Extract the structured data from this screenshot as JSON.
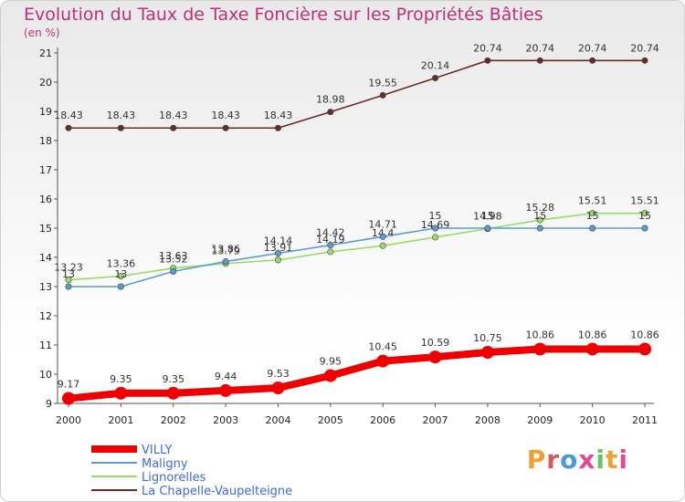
{
  "title": "Evolution du Taux de Taxe Foncière sur les Propriétés Bâties",
  "unit_label": "(en %)",
  "logo": "Proxiti",
  "chart_data": {
    "type": "line",
    "title": "Evolution du Taux de Taxe Foncière sur les Propriétés Bâties",
    "ylabel": "(en %)",
    "xlabel": "",
    "x": [
      2000,
      2001,
      2002,
      2003,
      2004,
      2005,
      2006,
      2007,
      2008,
      2009,
      2010,
      2011
    ],
    "ylim": [
      9,
      21
    ],
    "yticks": [
      9,
      10,
      11,
      12,
      13,
      14,
      15,
      16,
      17,
      18,
      19,
      20,
      21
    ],
    "grid": false,
    "legend": "bottom-left",
    "series": [
      {
        "name": "VILLY",
        "color": "#ee0000",
        "values": [
          9.17,
          9.35,
          9.35,
          9.44,
          9.53,
          9.95,
          10.45,
          10.59,
          10.75,
          10.86,
          10.86,
          10.86
        ],
        "labels": [
          "9.17",
          "9.35",
          "9.35",
          "9.44",
          "9.53",
          "9.95",
          "10.45",
          "10.59",
          "10.75",
          "10.86",
          "10.86",
          "10.86"
        ]
      },
      {
        "name": "Maligny",
        "color": "#5b9bd5",
        "values": [
          13,
          13,
          13.52,
          13.86,
          14.14,
          14.42,
          14.71,
          15,
          15,
          15,
          15,
          15
        ],
        "labels": [
          "13",
          "13",
          "13.52",
          "13.86",
          "14.14",
          "14.42",
          "14.71",
          "15",
          "15",
          "15",
          "15",
          "15"
        ]
      },
      {
        "name": "Lignorelles",
        "color": "#99dd66",
        "values": [
          13.23,
          13.36,
          13.63,
          13.79,
          13.91,
          14.19,
          14.4,
          14.69,
          14.98,
          15.28,
          15.51,
          15.51
        ],
        "labels": [
          "13.23",
          "13.36",
          "13.63",
          "13.79",
          "13.91",
          "14.19",
          "14.4",
          "14.69",
          "14.98",
          "15.28",
          "15.51",
          "15.51"
        ]
      },
      {
        "name": "La Chapelle-Vaupelteigne",
        "color": "#6b2a2a",
        "values": [
          18.43,
          18.43,
          18.43,
          18.43,
          18.43,
          18.98,
          19.55,
          20.14,
          20.74,
          20.74,
          20.74,
          20.74
        ],
        "labels": [
          "18.43",
          "18.43",
          "18.43",
          "18.43",
          "18.43",
          "18.98",
          "19.55",
          "20.14",
          "20.74",
          "20.74",
          "20.74",
          "20.74"
        ]
      }
    ]
  }
}
